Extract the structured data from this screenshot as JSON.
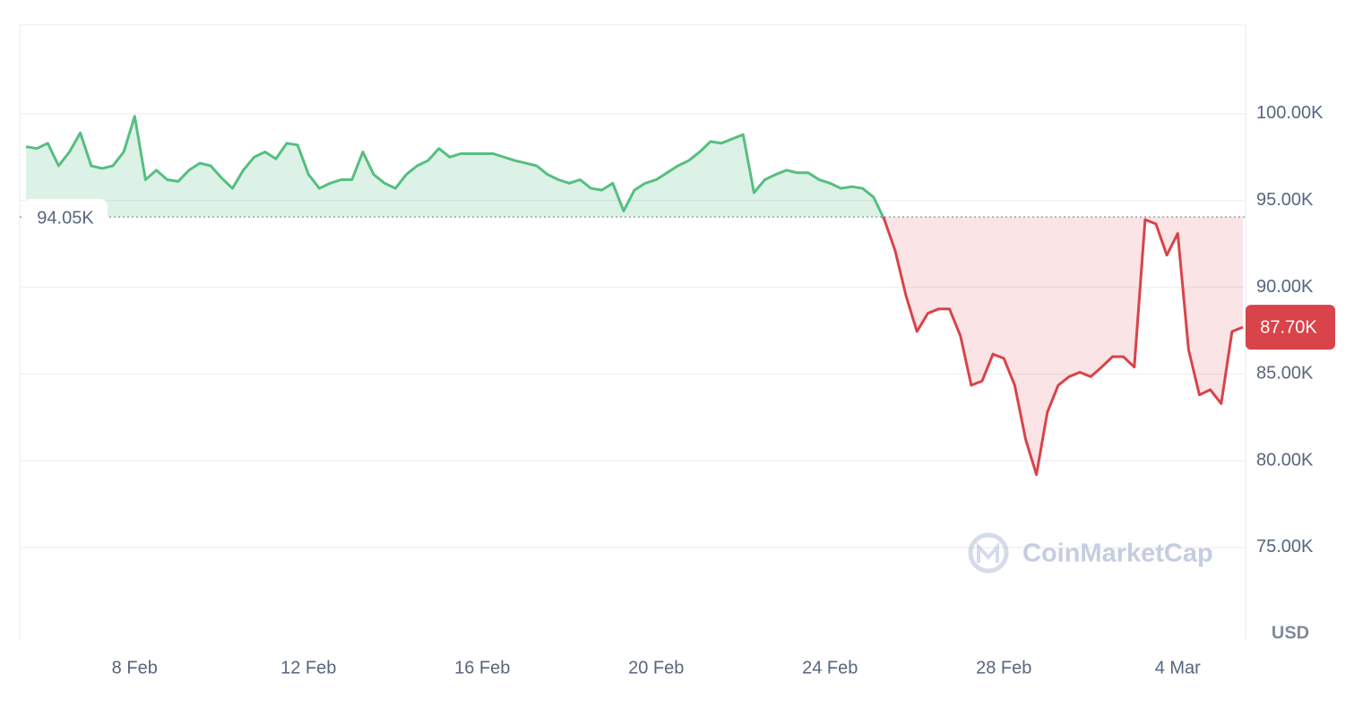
{
  "chart_data": {
    "type": "line",
    "categories": [
      null,
      null,
      null,
      null,
      null,
      null,
      null,
      null,
      null,
      null,
      "8 Feb",
      null,
      null,
      null,
      null,
      null,
      null,
      null,
      null,
      null,
      null,
      null,
      null,
      null,
      null,
      null,
      "12 Feb",
      null,
      null,
      null,
      null,
      null,
      null,
      null,
      null,
      null,
      null,
      null,
      null,
      null,
      null,
      null,
      "16 Feb",
      null,
      null,
      null,
      null,
      null,
      null,
      null,
      null,
      null,
      null,
      null,
      null,
      null,
      null,
      null,
      "20 Feb",
      null,
      null,
      null,
      null,
      null,
      null,
      null,
      null,
      null,
      null,
      null,
      null,
      null,
      null,
      null,
      "24 Feb",
      null,
      null,
      null,
      null,
      null,
      null,
      null,
      null,
      null,
      null,
      null,
      null,
      null,
      null,
      null,
      "28 Feb",
      null,
      null,
      null,
      null,
      null,
      null,
      null,
      null,
      null,
      null,
      null,
      null,
      null,
      null,
      null,
      "4 Mar",
      null,
      null,
      null,
      null,
      null,
      null
    ],
    "values": [
      98100,
      98000,
      98300,
      97000,
      97800,
      98900,
      97000,
      96850,
      97000,
      97800,
      99850,
      96200,
      96750,
      96200,
      96100,
      96750,
      97150,
      97000,
      96300,
      95700,
      96750,
      97500,
      97800,
      97400,
      98300,
      98200,
      96500,
      95700,
      96000,
      96200,
      96200,
      97800,
      96500,
      96000,
      95700,
      96500,
      97000,
      97300,
      98000,
      97500,
      97700,
      97700,
      97700,
      97700,
      97500,
      97300,
      97150,
      97000,
      96500,
      96200,
      96000,
      96200,
      95700,
      95600,
      96000,
      94400,
      95600,
      96000,
      96200,
      96600,
      97000,
      97300,
      97800,
      98400,
      98300,
      98550,
      98800,
      95450,
      96200,
      96500,
      96750,
      96600,
      96600,
      96200,
      96000,
      95700,
      95800,
      95700,
      95200,
      93900,
      92100,
      89500,
      87450,
      88500,
      88750,
      88750,
      87200,
      84350,
      84600,
      86150,
      85900,
      84350,
      81250,
      79200,
      82800,
      84350,
      84850,
      85100,
      84850,
      85400,
      86000,
      86000,
      85400,
      93900,
      93650,
      91850,
      93100,
      86400,
      83800,
      84100,
      83300,
      87450,
      87700
    ],
    "up_color": "#55bf80",
    "down_color": "#d9434a",
    "ylim": [
      69730,
      105110
    ],
    "yticks": [
      {
        "value": 75000,
        "label": "75.00K"
      },
      {
        "value": 80000,
        "label": "80.00K"
      },
      {
        "value": 85000,
        "label": "85.00K"
      },
      {
        "value": 90000,
        "label": "90.00K"
      },
      {
        "value": 95000,
        "label": "95.00K"
      },
      {
        "value": 100000,
        "label": "100.00K"
      }
    ],
    "grid": true,
    "reference": {
      "value": 94050,
      "label": "94.05K"
    },
    "last_price": {
      "value": 87700,
      "label": "87.70K"
    },
    "y_axis_label": "USD",
    "watermark": "CoinMarketCap"
  }
}
